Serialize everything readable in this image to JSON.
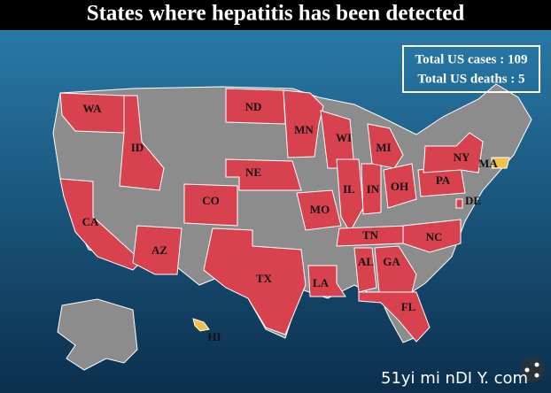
{
  "title": "States where hepatitis has been detected",
  "stats": [
    "Total US cases : 109",
    "Total US deaths : 5"
  ],
  "colors": {
    "cases": "#d8424f",
    "other": "#f0c04a",
    "none": "#8c8c8c"
  },
  "states": [
    {
      "label": "WA",
      "status": "cases"
    },
    {
      "label": "ID",
      "status": "cases"
    },
    {
      "label": "CA",
      "status": "cases"
    },
    {
      "label": "AZ",
      "status": "cases"
    },
    {
      "label": "CO",
      "status": "cases"
    },
    {
      "label": "TX",
      "status": "cases"
    },
    {
      "label": "ND",
      "status": "cases"
    },
    {
      "label": "NE",
      "status": "cases"
    },
    {
      "label": "MN",
      "status": "cases"
    },
    {
      "label": "WI",
      "status": "cases"
    },
    {
      "label": "MO",
      "status": "cases"
    },
    {
      "label": "IL",
      "status": "cases"
    },
    {
      "label": "IN",
      "status": "cases"
    },
    {
      "label": "MI",
      "status": "cases"
    },
    {
      "label": "OH",
      "status": "cases"
    },
    {
      "label": "PA",
      "status": "cases"
    },
    {
      "label": "NY",
      "status": "cases"
    },
    {
      "label": "TN",
      "status": "cases"
    },
    {
      "label": "NC",
      "status": "cases"
    },
    {
      "label": "AL",
      "status": "cases"
    },
    {
      "label": "GA",
      "status": "cases"
    },
    {
      "label": "FL",
      "status": "cases"
    },
    {
      "label": "LA",
      "status": "cases"
    },
    {
      "label": "DE",
      "status": "cases"
    },
    {
      "label": "MA",
      "status": "other"
    },
    {
      "label": "HI",
      "status": "other"
    }
  ],
  "watermark": "51yi mi nDI Y. com"
}
